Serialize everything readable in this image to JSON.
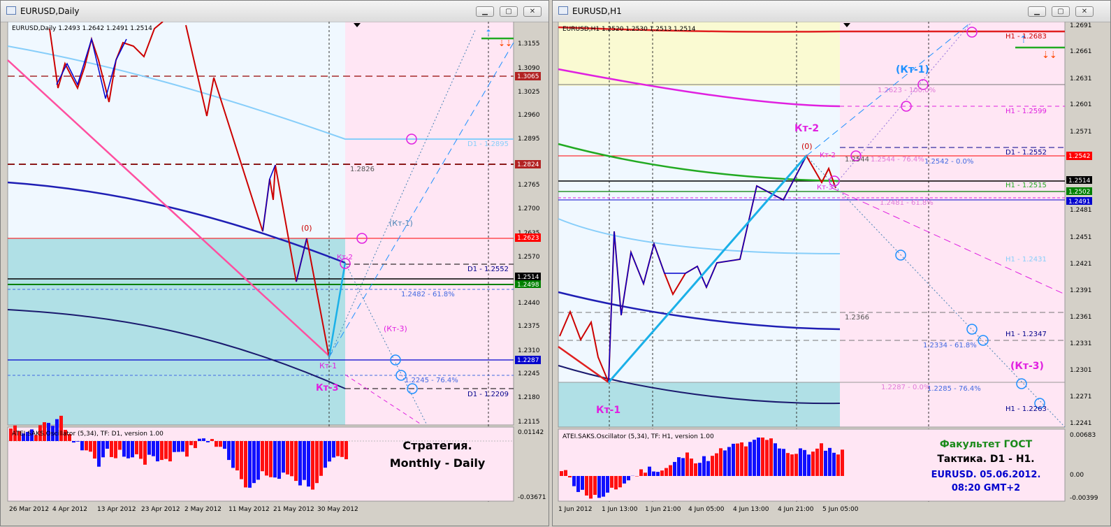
{
  "left": {
    "title": "EURUSD,Daily",
    "symbol_info": "EURUSD,Daily  1.2493 1.2642 1.2491 1.2514",
    "price_axis": [
      "1.3155",
      "1.3090",
      "1.3025",
      "1.2960",
      "1.2895",
      "1.2830",
      "1.2765",
      "1.2700",
      "1.2635",
      "1.2570",
      "1.2505",
      "1.2440",
      "1.2375",
      "1.2310",
      "1.2245",
      "1.2180",
      "1.2115"
    ],
    "price_tags": [
      {
        "label": "1.3065",
        "color": "#b22222"
      },
      {
        "label": "1.2824",
        "color": "#b22222"
      },
      {
        "label": "1.2623",
        "color": "#ff0000"
      },
      {
        "label": "1.2514",
        "color": "#000000"
      },
      {
        "label": "1.2498",
        "color": "#008000"
      },
      {
        "label": "1.2287",
        "color": "#0000cd"
      }
    ],
    "level_labels": [
      "D1 - 1.2895",
      "1.2826",
      "D1 - 1.2552",
      "1.2482 - 61.8%",
      "1.2245 - 76.4%",
      "D1 - 1.2209"
    ],
    "wave_labels": [
      "(0)",
      "(Кт-1)",
      "Кт-2",
      "(Кт-3)",
      "Кт-1",
      "Кт-3"
    ],
    "date_axis": [
      "26 Mar 2012",
      "4 Apr 2012",
      "13 Apr 2012",
      "23 Apr 2012",
      "2 May 2012",
      "11 May 2012",
      "21 May 2012",
      "30 May 2012"
    ],
    "oscillator_label": "ATEI.SAKS.Oscillator (5,34), TF: D1,  version 1.00",
    "osc_axis": [
      "0.01142",
      "-0.03671"
    ],
    "caption_line1": "Стратегия.",
    "caption_line2": "Monthly - Daily"
  },
  "right": {
    "title": "EURUSD,H1",
    "symbol_info": "EURUSD,H1  1.2520 1.2530 1.2513 1.2514",
    "price_axis": [
      "1.2691",
      "1.2661",
      "1.2631",
      "1.2601",
      "1.2571",
      "1.2541",
      "1.2511",
      "1.2481",
      "1.2451",
      "1.2421",
      "1.2391",
      "1.2361",
      "1.2331",
      "1.2301",
      "1.2271",
      "1.2241"
    ],
    "price_tags": [
      {
        "label": "1.2542",
        "color": "#ff0000"
      },
      {
        "label": "1.2514",
        "color": "#000000"
      },
      {
        "label": "1.2502",
        "color": "#008000"
      },
      {
        "label": "1.2491",
        "color": "#0000cd"
      }
    ],
    "level_labels": [
      "H1 - 1.2683",
      "1.2623 - 100.0%",
      "H1 - 1.2599",
      "D1 - 1.2552",
      "1.2544",
      "1.2544 - 76.4%",
      "1.2542 - 0.0%",
      "H1 - 1.2515",
      "1.2481 - 61.8%",
      "H1 - 1.2431",
      "1.2366",
      "H1 - 1.2347",
      "1.2334 - 61.8%",
      "1.2287 - 0.0%",
      "1.2285 - 76.4%",
      "H1 - 1.2263"
    ],
    "wave_labels": [
      "(Кт-1)",
      "Кт-2",
      "(0)",
      "Кт-2",
      "Кт-3",
      "Кт-1",
      "(Кт-3)"
    ],
    "date_axis": [
      "1 Jun 2012",
      "1 Jun 13:00",
      "1 Jun 21:00",
      "4 Jun 05:00",
      "4 Jun 13:00",
      "4 Jun 21:00",
      "5 Jun 05:00"
    ],
    "oscillator_label": "ATEI.SAKS.Oscillator (5,34), TF: H1,  version 1.00",
    "osc_axis": [
      "0.00683",
      "0.00",
      "-0.00399"
    ],
    "caption_line1": "Факультет ГОСТ",
    "caption_line2": "Тактика. D1 - H1.",
    "caption_line3": "EURUSD. 05.06.2012.",
    "caption_line4": "08:20  GMT+2"
  },
  "chart_data": [
    {
      "type": "line",
      "title": "EURUSD,Daily",
      "series": [
        {
          "name": "EURUSD",
          "values": [
            1.3155,
            1.3025,
            1.309,
            1.3,
            1.314,
            1.316,
            1.309,
            1.3155,
            1.3025,
            1.295,
            1.304,
            1.263,
            1.278,
            1.282,
            1.251,
            1.2623,
            1.2287,
            1.2552,
            1.2514
          ]
        }
      ],
      "ylim": [
        1.2115,
        1.3175
      ],
      "colors": {
        "price_line": "#cc0000",
        "ma_slow": "#1f1fb4",
        "ma_mid": "#87cefa",
        "ma_dark": "#1a1a6e",
        "trend": "#ff4fa0"
      }
    },
    {
      "type": "line",
      "title": "EURUSD,H1",
      "series": [
        {
          "name": "EURUSD",
          "values": [
            1.2287,
            1.233,
            1.23,
            1.245,
            1.238,
            1.243,
            1.237,
            1.241,
            1.242,
            1.245,
            1.247,
            1.244,
            1.248,
            1.25,
            1.2542,
            1.249,
            1.253,
            1.2514
          ]
        }
      ],
      "ylim": [
        1.2231,
        1.2701
      ],
      "colors": {
        "price_line": "#cc0000",
        "ma_slow": "#1f1fb4",
        "ma_mid": "#87cefa",
        "ma_green": "#22aa22",
        "ma_magenta": "#e020e0"
      }
    }
  ]
}
